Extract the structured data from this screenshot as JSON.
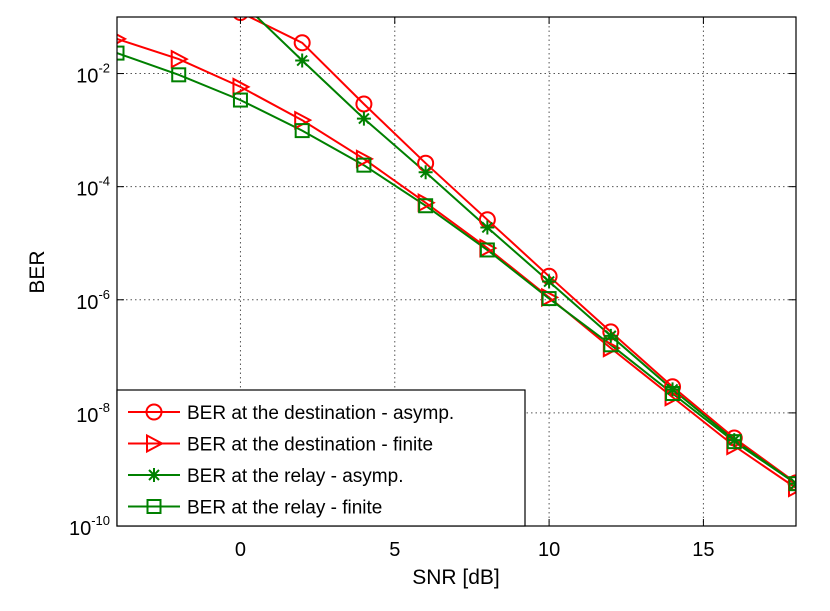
{
  "chart_data": {
    "type": "line",
    "xlabel": "SNR [dB]",
    "ylabel": "BER",
    "xlim": [
      -4,
      18
    ],
    "ylim": [
      1e-10,
      0.1
    ],
    "yscale": "log",
    "grid": true,
    "legend_position": "bottom-left",
    "xticks": [
      0,
      5,
      10,
      15
    ],
    "xtick_labels": [
      "0",
      "5",
      "10",
      "15"
    ],
    "yticks": [
      {
        "value": 0.01,
        "base": "10",
        "exp": "-2"
      },
      {
        "value": 0.0001,
        "base": "10",
        "exp": "-4"
      },
      {
        "value": 1e-06,
        "base": "10",
        "exp": "-6"
      },
      {
        "value": 1e-08,
        "base": "10",
        "exp": "-8"
      },
      {
        "value": 1e-10,
        "base": "10",
        "exp": "-10"
      }
    ],
    "series": [
      {
        "name": "BER at the destination - asymp.",
        "color": "#ff0000",
        "marker": "circle",
        "x": [
          0,
          2,
          4,
          6,
          8,
          10,
          12,
          14,
          16,
          18
        ],
        "y": [
          0.12,
          0.035,
          0.0029,
          0.00026,
          2.6e-05,
          2.6e-06,
          2.7e-07,
          2.9e-08,
          3.6e-09,
          5.8e-10
        ]
      },
      {
        "name": "BER at the destination - finite",
        "color": "#ff0000",
        "marker": "triangle-right",
        "x": [
          -4,
          -2,
          0,
          2,
          4,
          6,
          8,
          10,
          12,
          14,
          16,
          18
        ],
        "y": [
          0.041,
          0.018,
          0.0058,
          0.0015,
          0.00031,
          5.2e-05,
          8.2e-06,
          1.1e-06,
          1.4e-07,
          1.9e-08,
          2.6e-09,
          4.7e-10
        ]
      },
      {
        "name": "BER at the relay - asymp.",
        "color": "#008000",
        "marker": "star",
        "x": [
          0,
          2,
          4,
          6,
          8,
          10,
          12,
          14,
          16,
          18
        ],
        "y": [
          0.19,
          0.017,
          0.0016,
          0.00018,
          1.9e-05,
          2.1e-06,
          2.3e-07,
          2.6e-08,
          3.3e-09,
          5.6e-10
        ]
      },
      {
        "name": "BER at the relay - finite",
        "color": "#008000",
        "marker": "square",
        "x": [
          -4,
          -2,
          0,
          2,
          4,
          6,
          8,
          10,
          12,
          14,
          16,
          18
        ],
        "y": [
          0.023,
          0.0095,
          0.0034,
          0.00098,
          0.00024,
          4.6e-05,
          7.6e-06,
          1.05e-06,
          1.6e-07,
          2.2e-08,
          3.1e-09,
          5.6e-10
        ]
      }
    ]
  }
}
